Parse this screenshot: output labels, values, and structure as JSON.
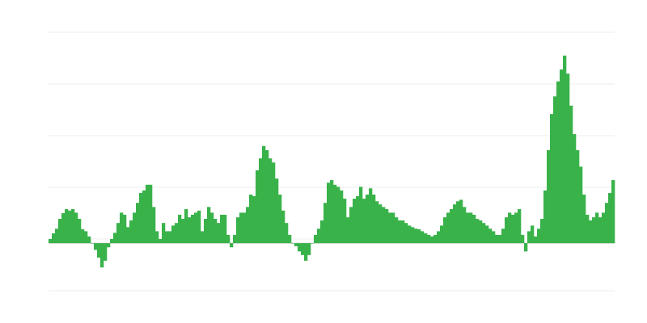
{
  "chart_data": {
    "type": "bar",
    "title": "",
    "xlabel": "",
    "ylabel": "",
    "grid": true,
    "ylim": [
      -9.2,
      40.8
    ],
    "gridlines": [
      -9.2,
      0.8,
      10.8,
      20.8,
      30.8,
      40.8
    ],
    "bar_color": "#39b24a",
    "grid_color": "#ececec",
    "values": [
      0.8,
      1.9,
      2.8,
      4.7,
      5.8,
      6.6,
      6.3,
      6.6,
      5.9,
      4.7,
      2.7,
      2.3,
      1.3,
      0,
      -1.3,
      -2.8,
      -4.7,
      -3.4,
      -0.8,
      0.8,
      2.0,
      3.9,
      5.9,
      5.5,
      3.1,
      4.4,
      5.9,
      7.8,
      9.7,
      10.2,
      11.3,
      11.3,
      7.0,
      2.3,
      0.8,
      3.9,
      2.3,
      2.3,
      3.4,
      3.9,
      5.5,
      4.7,
      6.6,
      5.0,
      5.5,
      5.9,
      6.3,
      2.3,
      4.7,
      7.0,
      5.9,
      4.7,
      3.9,
      5.5,
      5.5,
      1.6,
      -0.8,
      1.6,
      5.0,
      5.9,
      5.9,
      7.0,
      9.4,
      9.1,
      14.1,
      16.4,
      18.8,
      18.0,
      16.4,
      15.6,
      12.5,
      9.4,
      6.3,
      3.9,
      1.6,
      0,
      -0.6,
      -1.6,
      -2.3,
      -3.4,
      -2.3,
      0,
      1.6,
      2.8,
      4.4,
      7.8,
      11.7,
      12.2,
      11.3,
      10.9,
      10.2,
      8.6,
      5.0,
      7.0,
      8.6,
      9.1,
      10.9,
      8.6,
      9.4,
      10.6,
      9.4,
      8.1,
      7.5,
      7.0,
      6.6,
      5.9,
      5.9,
      5.0,
      4.4,
      4.4,
      3.9,
      3.4,
      3.1,
      2.8,
      2.7,
      2.3,
      1.9,
      1.6,
      1.3,
      1.6,
      2.3,
      3.4,
      5.0,
      5.9,
      6.6,
      7.5,
      8.1,
      8.4,
      7.0,
      5.9,
      5.9,
      5.5,
      4.7,
      4.4,
      3.9,
      3.4,
      2.8,
      2.3,
      1.6,
      1.6,
      2.8,
      5.0,
      5.9,
      5.5,
      5.9,
      6.6,
      1.6,
      -1.6,
      2.3,
      3.4,
      1.3,
      2.8,
      4.7,
      10.2,
      18.0,
      25.0,
      28.4,
      31.3,
      33.6,
      36.3,
      32.8,
      26.6,
      21.1,
      18.0,
      14.8,
      9.4,
      5.5,
      4.4,
      5.0,
      5.9,
      5.0,
      5.9,
      7.8,
      9.7,
      12.2
    ]
  }
}
